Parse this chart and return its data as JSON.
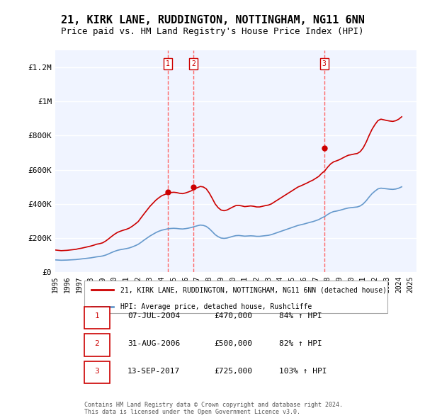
{
  "title": "21, KIRK LANE, RUDDINGTON, NOTTINGHAM, NG11 6NN",
  "subtitle": "Price paid vs. HM Land Registry's House Price Index (HPI)",
  "title_fontsize": 11,
  "subtitle_fontsize": 9,
  "background_color": "#ffffff",
  "plot_bg_color": "#f0f4ff",
  "grid_color": "#ffffff",
  "ylabel_ticks": [
    "£0",
    "£200K",
    "£400K",
    "£600K",
    "£800K",
    "£1M",
    "£1.2M"
  ],
  "ylim": [
    0,
    1300000
  ],
  "xlim_start": 1995.0,
  "xlim_end": 2025.5,
  "x_tick_years": [
    1995,
    1996,
    1997,
    1998,
    1999,
    2000,
    2001,
    2002,
    2003,
    2004,
    2005,
    2006,
    2007,
    2008,
    2009,
    2010,
    2011,
    2012,
    2013,
    2014,
    2015,
    2016,
    2017,
    2018,
    2019,
    2020,
    2021,
    2022,
    2023,
    2024,
    2025
  ],
  "sale_dates": [
    2004.52,
    2006.67,
    2017.71
  ],
  "sale_prices": [
    470000,
    500000,
    725000
  ],
  "sale_labels": [
    "1",
    "2",
    "3"
  ],
  "sale_label_color": "#cc0000",
  "vline_color": "#ff6666",
  "legend_line1_label": "21, KIRK LANE, RUDDINGTON, NOTTINGHAM, NG11 6NN (detached house)",
  "legend_line2_label": "HPI: Average price, detached house, Rushcliffe",
  "legend_line1_color": "#cc0000",
  "legend_line2_color": "#6699cc",
  "table_rows": [
    {
      "label": "1",
      "date": "07-JUL-2004",
      "price": "£470,000",
      "hpi": "84% ↑ HPI"
    },
    {
      "label": "2",
      "date": "31-AUG-2006",
      "price": "£500,000",
      "hpi": "82% ↑ HPI"
    },
    {
      "label": "3",
      "date": "13-SEP-2017",
      "price": "£725,000",
      "hpi": "103% ↑ HPI"
    }
  ],
  "footer": "Contains HM Land Registry data © Crown copyright and database right 2024.\nThis data is licensed under the Open Government Licence v3.0.",
  "hpi_years": [
    1995.0,
    1995.25,
    1995.5,
    1995.75,
    1996.0,
    1996.25,
    1996.5,
    1996.75,
    1997.0,
    1997.25,
    1997.5,
    1997.75,
    1998.0,
    1998.25,
    1998.5,
    1998.75,
    1999.0,
    1999.25,
    1999.5,
    1999.75,
    2000.0,
    2000.25,
    2000.5,
    2000.75,
    2001.0,
    2001.25,
    2001.5,
    2001.75,
    2002.0,
    2002.25,
    2002.5,
    2002.75,
    2003.0,
    2003.25,
    2003.5,
    2003.75,
    2004.0,
    2004.25,
    2004.5,
    2004.75,
    2005.0,
    2005.25,
    2005.5,
    2005.75,
    2006.0,
    2006.25,
    2006.5,
    2006.75,
    2007.0,
    2007.25,
    2007.5,
    2007.75,
    2008.0,
    2008.25,
    2008.5,
    2008.75,
    2009.0,
    2009.25,
    2009.5,
    2009.75,
    2010.0,
    2010.25,
    2010.5,
    2010.75,
    2011.0,
    2011.25,
    2011.5,
    2011.75,
    2012.0,
    2012.25,
    2012.5,
    2012.75,
    2013.0,
    2013.25,
    2013.5,
    2013.75,
    2014.0,
    2014.25,
    2014.5,
    2014.75,
    2015.0,
    2015.25,
    2015.5,
    2015.75,
    2016.0,
    2016.25,
    2016.5,
    2016.75,
    2017.0,
    2017.25,
    2017.5,
    2017.75,
    2018.0,
    2018.25,
    2018.5,
    2018.75,
    2019.0,
    2019.25,
    2019.5,
    2019.75,
    2020.0,
    2020.25,
    2020.5,
    2020.75,
    2021.0,
    2021.25,
    2021.5,
    2021.75,
    2022.0,
    2022.25,
    2022.5,
    2022.75,
    2023.0,
    2023.25,
    2023.5,
    2023.75,
    2024.0,
    2024.25
  ],
  "hpi_values": [
    72000,
    71000,
    70000,
    70500,
    71000,
    72000,
    73000,
    74000,
    76000,
    78000,
    80000,
    82000,
    84000,
    87000,
    90000,
    92000,
    95000,
    100000,
    107000,
    115000,
    122000,
    128000,
    132000,
    135000,
    138000,
    142000,
    148000,
    155000,
    163000,
    175000,
    188000,
    200000,
    212000,
    222000,
    232000,
    240000,
    246000,
    250000,
    254000,
    256000,
    257000,
    256000,
    254000,
    253000,
    255000,
    258000,
    262000,
    267000,
    272000,
    276000,
    274000,
    268000,
    255000,
    238000,
    220000,
    208000,
    200000,
    198000,
    200000,
    205000,
    210000,
    214000,
    215000,
    213000,
    211000,
    212000,
    213000,
    212000,
    210000,
    210000,
    212000,
    214000,
    216000,
    220000,
    226000,
    232000,
    238000,
    244000,
    250000,
    256000,
    262000,
    268000,
    274000,
    278000,
    282000,
    287000,
    292000,
    296000,
    302000,
    308000,
    318000,
    326000,
    338000,
    348000,
    355000,
    358000,
    362000,
    367000,
    372000,
    376000,
    378000,
    380000,
    382000,
    388000,
    400000,
    418000,
    440000,
    460000,
    475000,
    488000,
    492000,
    490000,
    488000,
    486000,
    485000,
    487000,
    492000,
    500000
  ],
  "red_years": [
    1995.0,
    1995.25,
    1995.5,
    1995.75,
    1996.0,
    1996.25,
    1996.5,
    1996.75,
    1997.0,
    1997.25,
    1997.5,
    1997.75,
    1998.0,
    1998.25,
    1998.5,
    1998.75,
    1999.0,
    1999.25,
    1999.5,
    1999.75,
    2000.0,
    2000.25,
    2000.5,
    2000.75,
    2001.0,
    2001.25,
    2001.5,
    2001.75,
    2002.0,
    2002.25,
    2002.5,
    2002.75,
    2003.0,
    2003.25,
    2003.5,
    2003.75,
    2004.0,
    2004.25,
    2004.5,
    2004.75,
    2005.0,
    2005.25,
    2005.5,
    2005.75,
    2006.0,
    2006.25,
    2006.5,
    2006.75,
    2007.0,
    2007.25,
    2007.5,
    2007.75,
    2008.0,
    2008.25,
    2008.5,
    2008.75,
    2009.0,
    2009.25,
    2009.5,
    2009.75,
    2010.0,
    2010.25,
    2010.5,
    2010.75,
    2011.0,
    2011.25,
    2011.5,
    2011.75,
    2012.0,
    2012.25,
    2012.5,
    2012.75,
    2013.0,
    2013.25,
    2013.5,
    2013.75,
    2014.0,
    2014.25,
    2014.5,
    2014.75,
    2015.0,
    2015.25,
    2015.5,
    2015.75,
    2016.0,
    2016.25,
    2016.5,
    2016.75,
    2017.0,
    2017.25,
    2017.5,
    2017.75,
    2018.0,
    2018.25,
    2018.5,
    2018.75,
    2019.0,
    2019.25,
    2019.5,
    2019.75,
    2020.0,
    2020.25,
    2020.5,
    2020.75,
    2021.0,
    2021.25,
    2021.5,
    2021.75,
    2022.0,
    2022.25,
    2022.5,
    2022.75,
    2023.0,
    2023.25,
    2023.5,
    2023.75,
    2024.0,
    2024.25
  ],
  "red_values": [
    130000,
    128000,
    126000,
    127000,
    128000,
    130000,
    132000,
    134000,
    138000,
    141000,
    145000,
    149000,
    153000,
    158000,
    164000,
    167000,
    172000,
    182000,
    195000,
    209000,
    222000,
    233000,
    240000,
    246000,
    251000,
    258000,
    269000,
    282000,
    296000,
    319000,
    342000,
    364000,
    386000,
    404000,
    422000,
    436000,
    448000,
    455000,
    462000,
    466000,
    468000,
    466000,
    462000,
    460000,
    464000,
    470000,
    477000,
    486000,
    495000,
    502000,
    499000,
    488000,
    464000,
    433000,
    400000,
    378000,
    364000,
    360000,
    364000,
    373000,
    382000,
    390000,
    391000,
    388000,
    384000,
    386000,
    388000,
    386000,
    382000,
    382000,
    386000,
    390000,
    393000,
    400000,
    411000,
    422000,
    433000,
    444000,
    455000,
    466000,
    477000,
    488000,
    499000,
    506000,
    514000,
    522000,
    531000,
    539000,
    550000,
    561000,
    579000,
    593000,
    615000,
    634000,
    646000,
    652000,
    659000,
    668000,
    677000,
    685000,
    688000,
    692000,
    695000,
    706000,
    728000,
    761000,
    801000,
    837000,
    865000,
    888000,
    896000,
    892000,
    888000,
    885000,
    883000,
    887000,
    896000,
    910000
  ]
}
